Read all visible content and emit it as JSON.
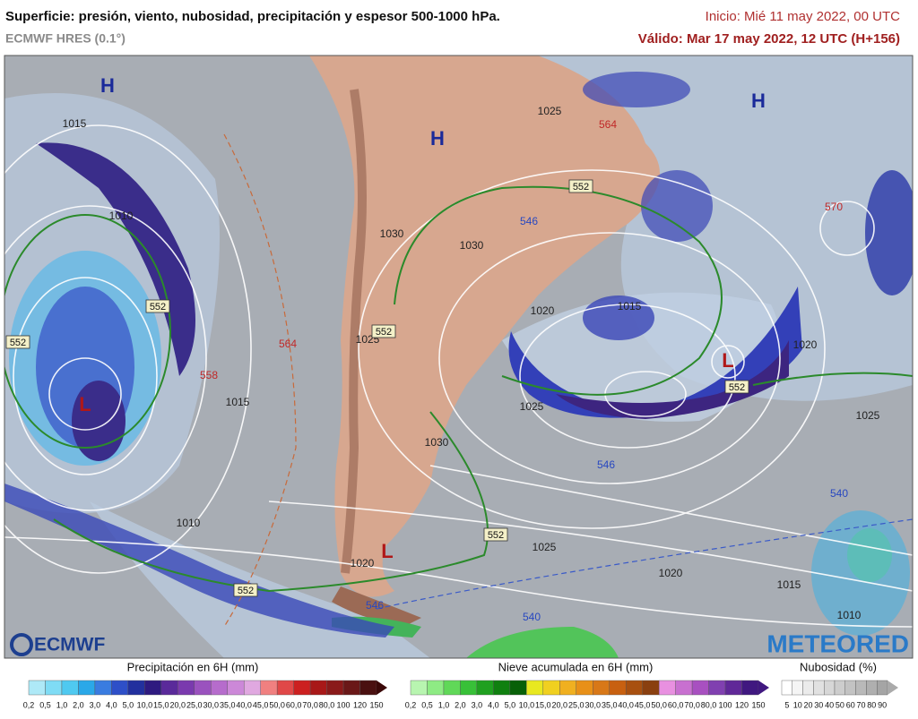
{
  "header": {
    "title": "Superficie: presión, viento, nubosidad, precipitación y espesor 500-1000 hPa.",
    "model": "ECMWF HRES (0.1°)",
    "init": "Inicio: Mié 11 may 2022, 00 UTC",
    "valid": "Válido: Mar 17 may 2022, 12 UTC (H+156)"
  },
  "map": {
    "highs": [
      "H",
      "H",
      "H"
    ],
    "lows": [
      "L",
      "L",
      "L"
    ],
    "isobars": [
      1015,
      1010,
      1030,
      1030,
      1025,
      1015,
      1020,
      1020,
      1025,
      1025,
      1030,
      1015,
      1010,
      1025,
      1020,
      1015,
      1010,
      1020,
      1025
    ],
    "thickness_552": [
      552,
      552,
      552,
      552,
      552,
      552,
      552
    ],
    "thickness_warm": [
      564,
      564,
      558,
      570
    ],
    "thickness_cold": [
      546,
      546,
      540,
      540,
      546
    ]
  },
  "logos": {
    "left": "ECMWF",
    "right": "METEORED"
  },
  "legends": {
    "precipitation": {
      "title": "Precipitación en 6H (mm)",
      "ticks": [
        "0,2",
        "0,5",
        "1,0",
        "2,0",
        "3,0",
        "4,0",
        "5,0",
        "10,0",
        "15,0",
        "20,0",
        "25,0",
        "30,0",
        "35,0",
        "40,0",
        "45,0",
        "50,0",
        "60,0",
        "70,0",
        "80,0",
        "100",
        "120",
        "150"
      ]
    },
    "snow": {
      "title": "Nieve acumulada en 6H (mm)",
      "ticks": [
        "0,2",
        "0,5",
        "1,0",
        "2,0",
        "3,0",
        "4,0",
        "5,0",
        "10,0",
        "15,0",
        "20,0",
        "25,0",
        "30,0",
        "35,0",
        "40,0",
        "45,0",
        "50,0",
        "60,0",
        "70,0",
        "80,0",
        "100",
        "120",
        "150"
      ]
    },
    "cloud": {
      "title": "Nubosidad (%)",
      "ticks": [
        5,
        10,
        20,
        30,
        40,
        50,
        60,
        70,
        80,
        90
      ]
    }
  }
}
